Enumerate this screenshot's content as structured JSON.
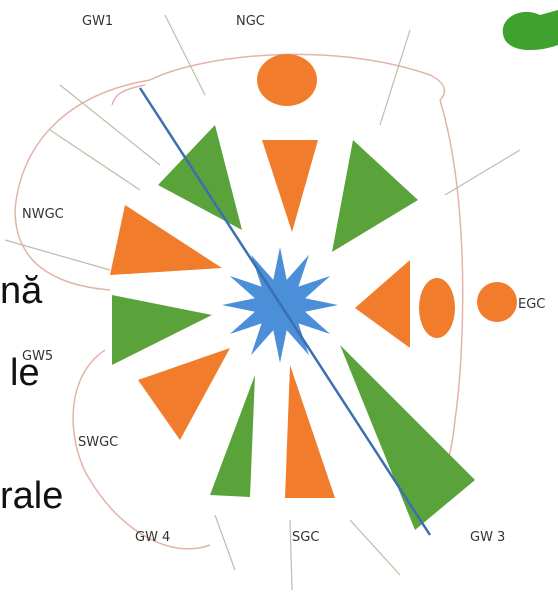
{
  "labels": {
    "gw1": "GW1",
    "ngc": "NGC",
    "nwgc": "NWGC",
    "egc": "EGC",
    "gw5": "GW5",
    "swgc": "SWGC",
    "gw4": "GW 4",
    "sgc": "SGC",
    "gw3": "GW 3"
  },
  "background_text": [
    "nă",
    "le",
    "rale"
  ]
}
